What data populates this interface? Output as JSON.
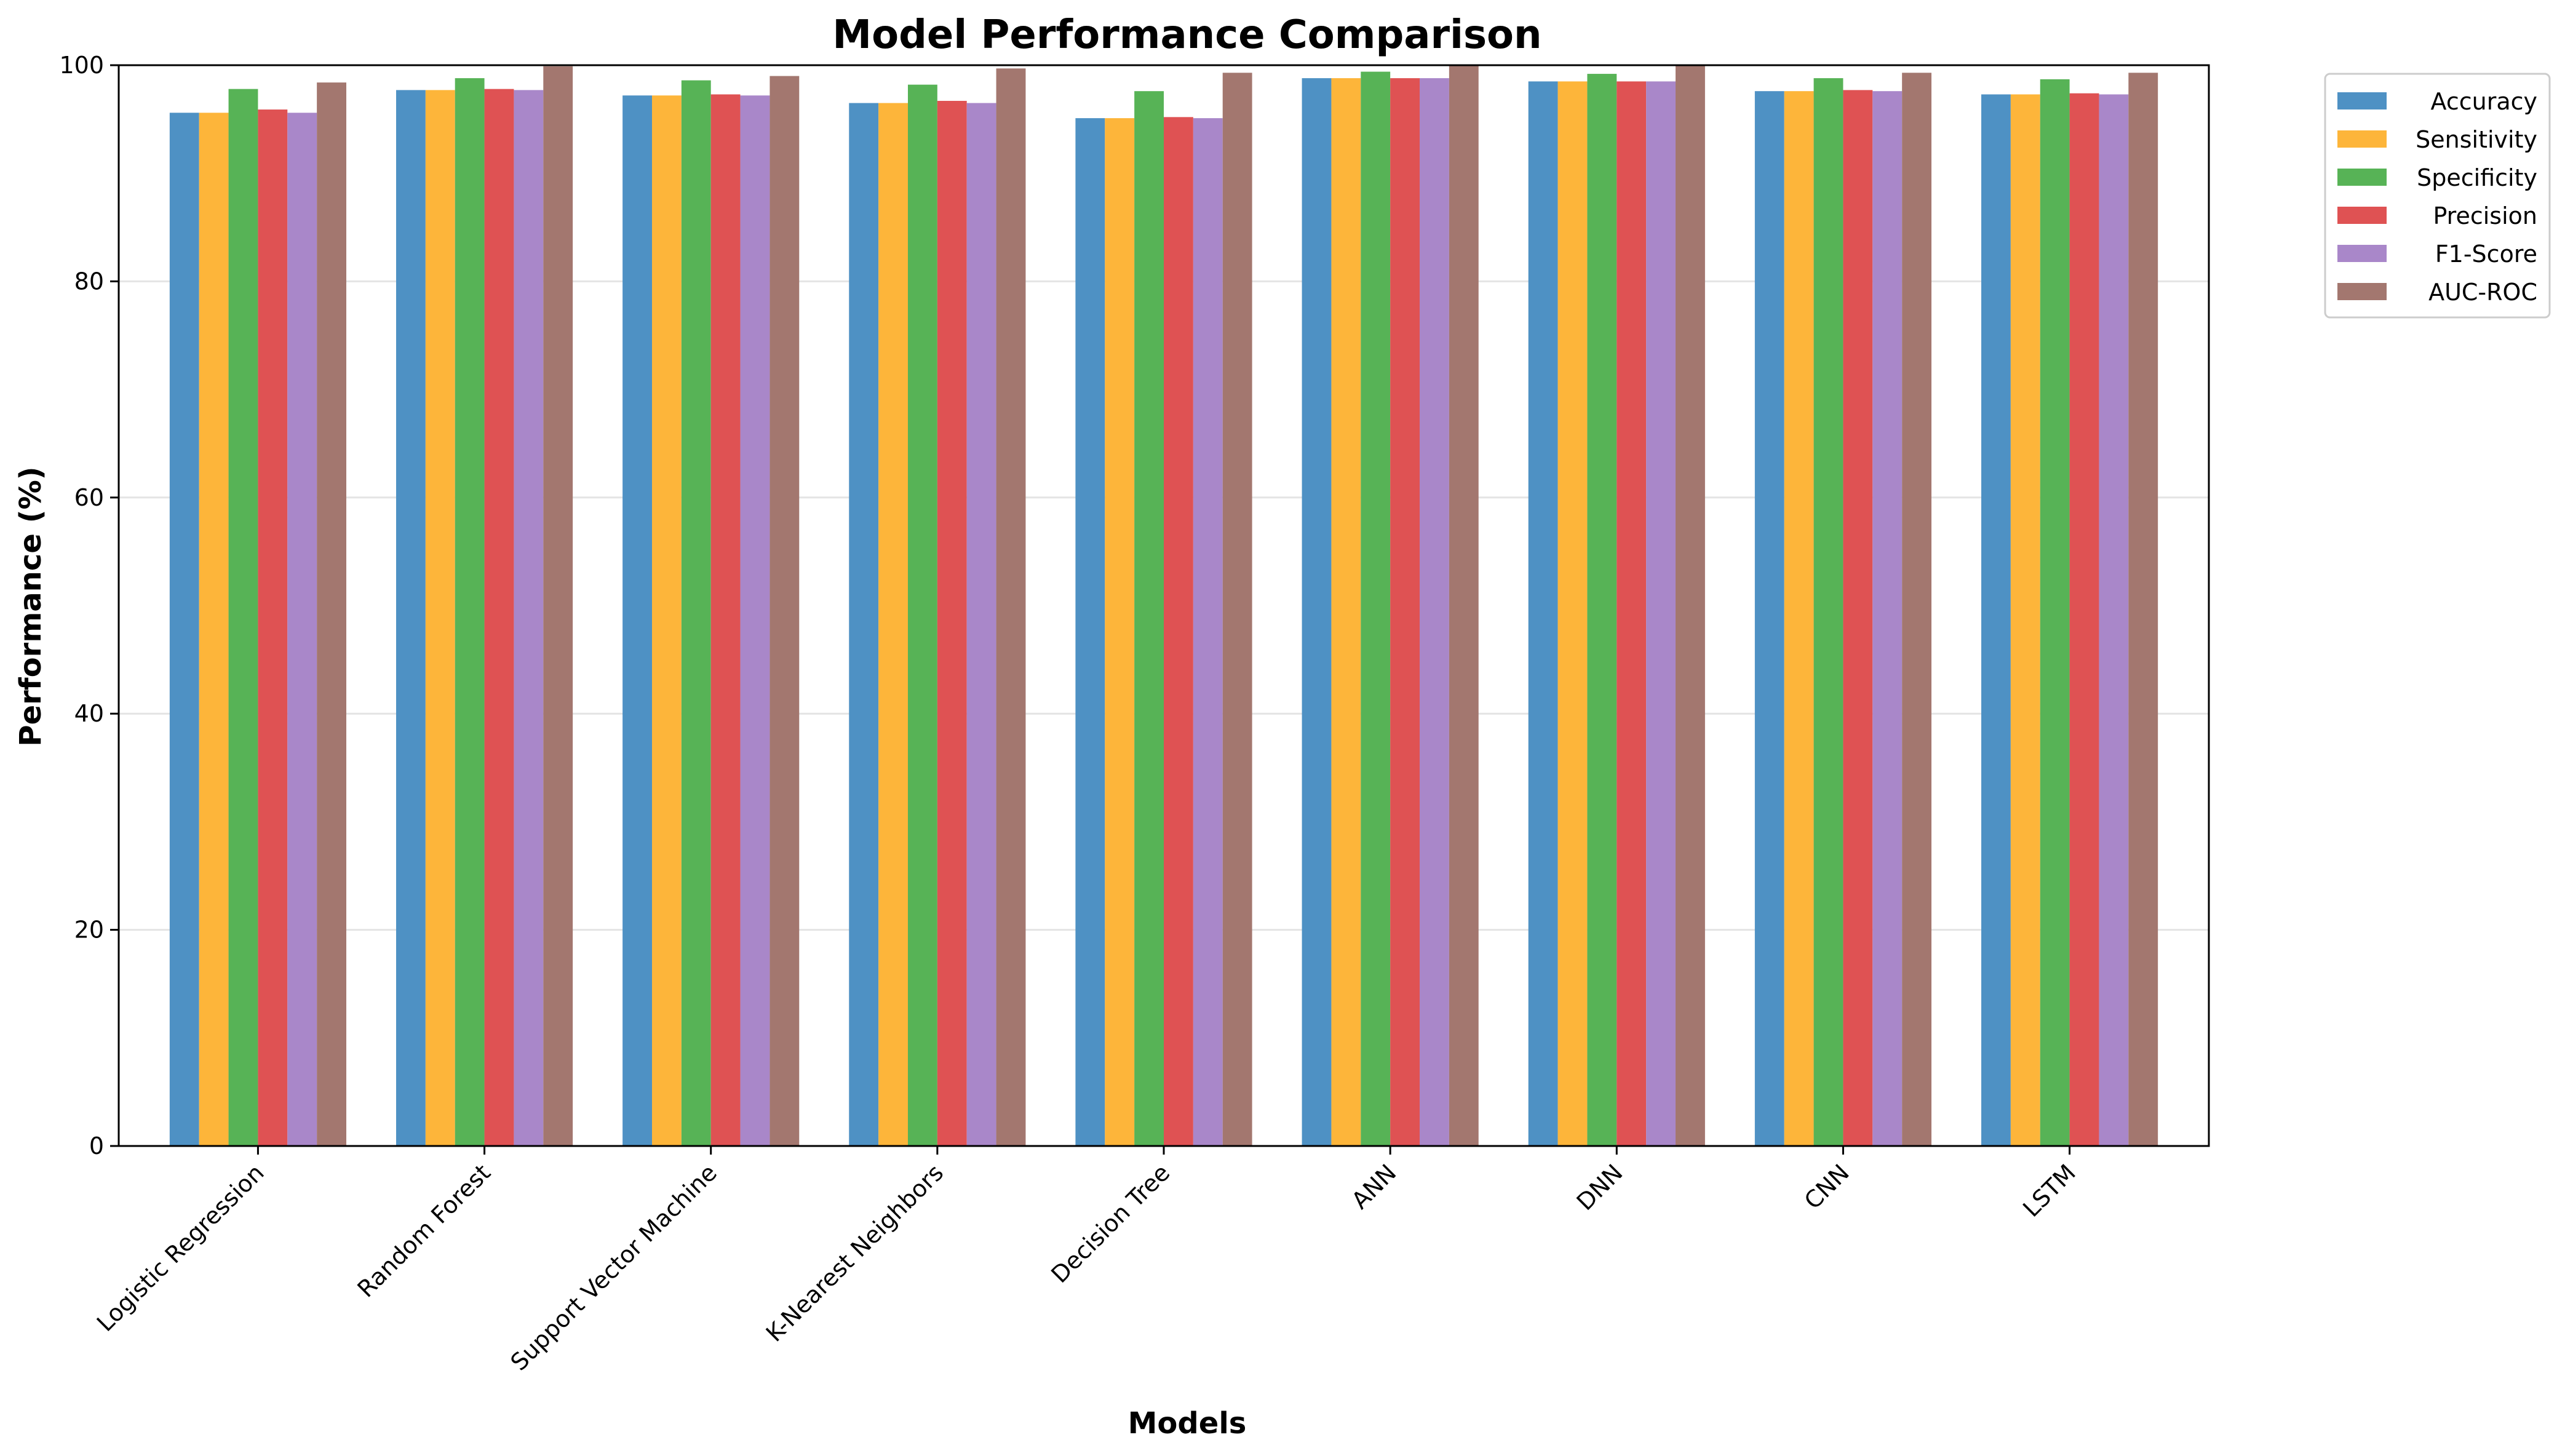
{
  "chart_data": {
    "type": "bar",
    "title": "Model Performance Comparison",
    "xlabel": "Models",
    "ylabel": "Performance (%)",
    "ylim": [
      0,
      100
    ],
    "yticks": [
      0,
      20,
      40,
      60,
      80,
      100
    ],
    "grid": "y",
    "legend_position": "outside-top-right",
    "categories": [
      "Logistic Regression",
      "Random Forest",
      "Support Vector Machine",
      "K-Nearest Neighbors",
      "Decision Tree",
      "ANN",
      "DNN",
      "CNN",
      "LSTM"
    ],
    "series": [
      {
        "name": "Accuracy",
        "color": "#4e91c4",
        "values": [
          95.6,
          97.7,
          97.2,
          96.5,
          95.1,
          98.8,
          98.5,
          97.6,
          97.3
        ]
      },
      {
        "name": "Sensitivity",
        "color": "#fdb53a",
        "values": [
          95.6,
          97.7,
          97.2,
          96.5,
          95.1,
          98.8,
          98.5,
          97.6,
          97.3
        ]
      },
      {
        "name": "Specificity",
        "color": "#57b356",
        "values": [
          97.8,
          98.8,
          98.6,
          98.2,
          97.6,
          99.4,
          99.2,
          98.8,
          98.7
        ]
      },
      {
        "name": "Precision",
        "color": "#df5253",
        "values": [
          95.9,
          97.8,
          97.3,
          96.7,
          95.2,
          98.8,
          98.5,
          97.7,
          97.4
        ]
      },
      {
        "name": "F1-Score",
        "color": "#a987c9",
        "values": [
          95.6,
          97.7,
          97.2,
          96.5,
          95.1,
          98.8,
          98.5,
          97.6,
          97.3
        ]
      },
      {
        "name": "AUC-ROC",
        "color": "#a3776f",
        "values": [
          98.4,
          99.9,
          99.0,
          99.7,
          99.3,
          100.0,
          100.0,
          99.3,
          99.3
        ]
      }
    ]
  }
}
